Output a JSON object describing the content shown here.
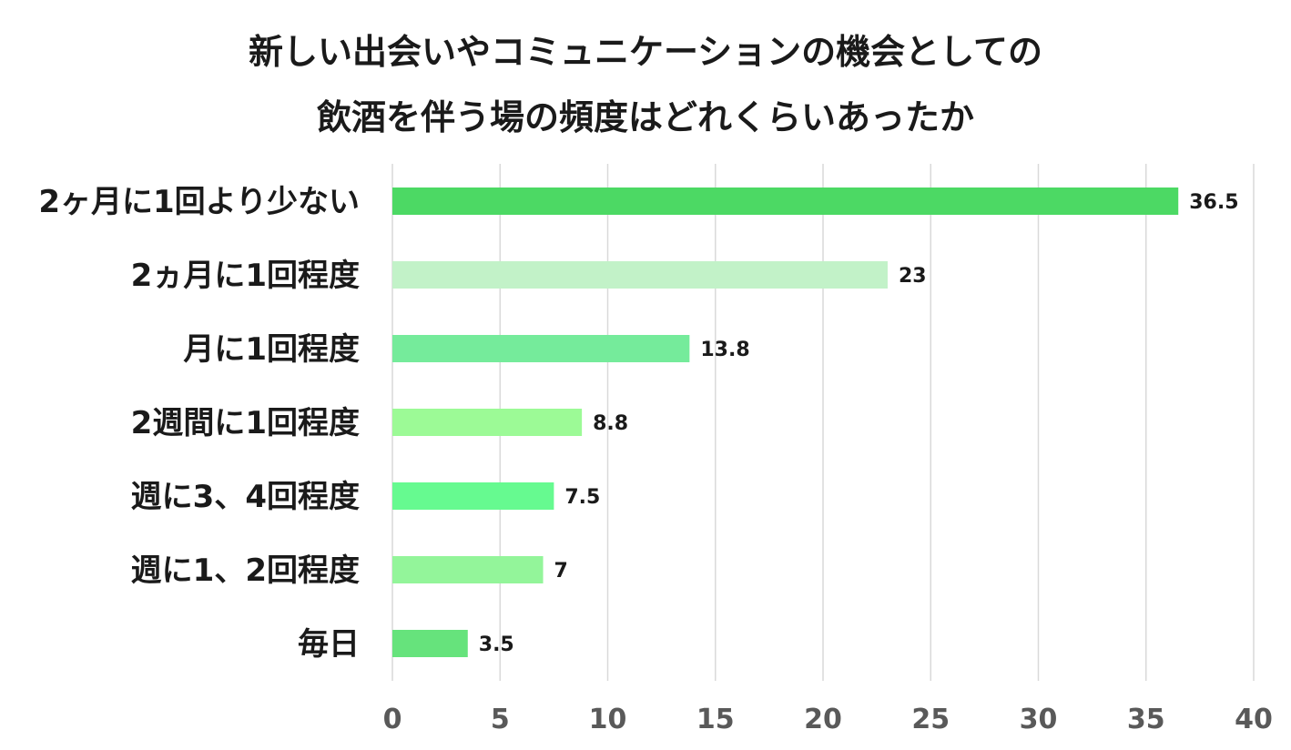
{
  "chart_data": {
    "type": "bar",
    "orientation": "horizontal",
    "title_lines": [
      "新しい出会いやコミュニケーションの機会としての",
      "飲酒を伴う場の頻度はどれくらいあったか"
    ],
    "categories": [
      "2ヶ月に1回より少ない",
      "2ヵ月に1回程度",
      "月に1回程度",
      "2週間に1回程度",
      "週に3、4回程度",
      "週に1、2回程度",
      "毎日"
    ],
    "values": [
      36.5,
      23,
      13.8,
      8.8,
      7.5,
      7,
      3.5
    ],
    "value_labels": [
      "36.5",
      "23",
      "13.8",
      "8.8",
      "7.5",
      "7",
      "3.5"
    ],
    "bar_colors": [
      "#4cd964",
      "#c2f2c8",
      "#75eb9b",
      "#9cfa96",
      "#66fa90",
      "#93f59a",
      "#66e37c"
    ],
    "xlim": [
      0,
      40
    ],
    "ticks": [
      0,
      5,
      10,
      15,
      20,
      25,
      30,
      35,
      40
    ],
    "tick_labels": [
      "0",
      "5",
      "10",
      "15",
      "20",
      "25",
      "30",
      "35",
      "40"
    ],
    "grid": true,
    "legend": "none",
    "xlabel": "",
    "ylabel": ""
  }
}
